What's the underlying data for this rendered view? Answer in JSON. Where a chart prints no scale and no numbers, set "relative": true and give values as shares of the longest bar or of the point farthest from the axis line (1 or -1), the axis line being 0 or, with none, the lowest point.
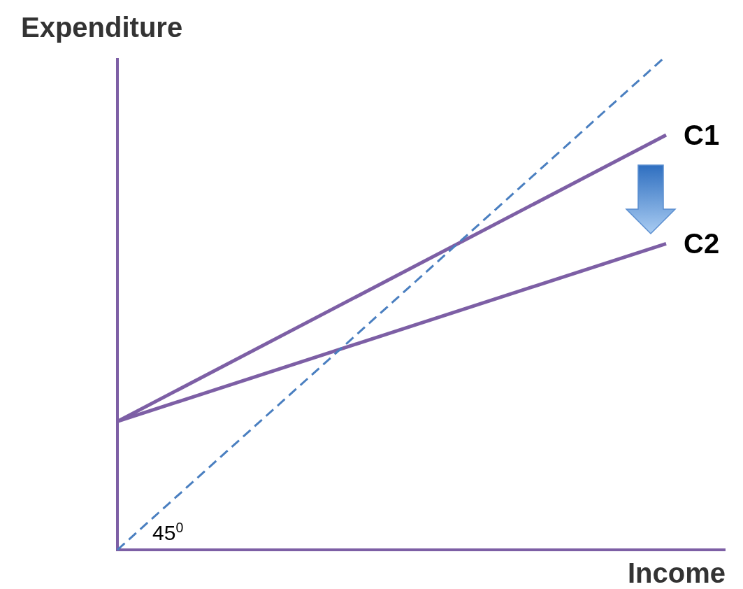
{
  "chart_data": {
    "type": "line",
    "relative": true,
    "xlabel": "Income",
    "ylabel": "Expenditure",
    "categories": [
      null,
      null
    ],
    "series": [
      {
        "name": "C1",
        "color": "#7d5fa5",
        "values": [
          0.26,
          0.84
        ],
        "line_style": "solid"
      },
      {
        "name": "C2",
        "color": "#7d5fa5",
        "values": [
          0.26,
          0.62
        ],
        "line_style": "solid"
      },
      {
        "color": "#4a7fc0",
        "values": [
          0,
          1
        ],
        "line_style": "dashed"
      }
    ],
    "annotations": [
      "45$^{0}$"
    ]
  }
}
